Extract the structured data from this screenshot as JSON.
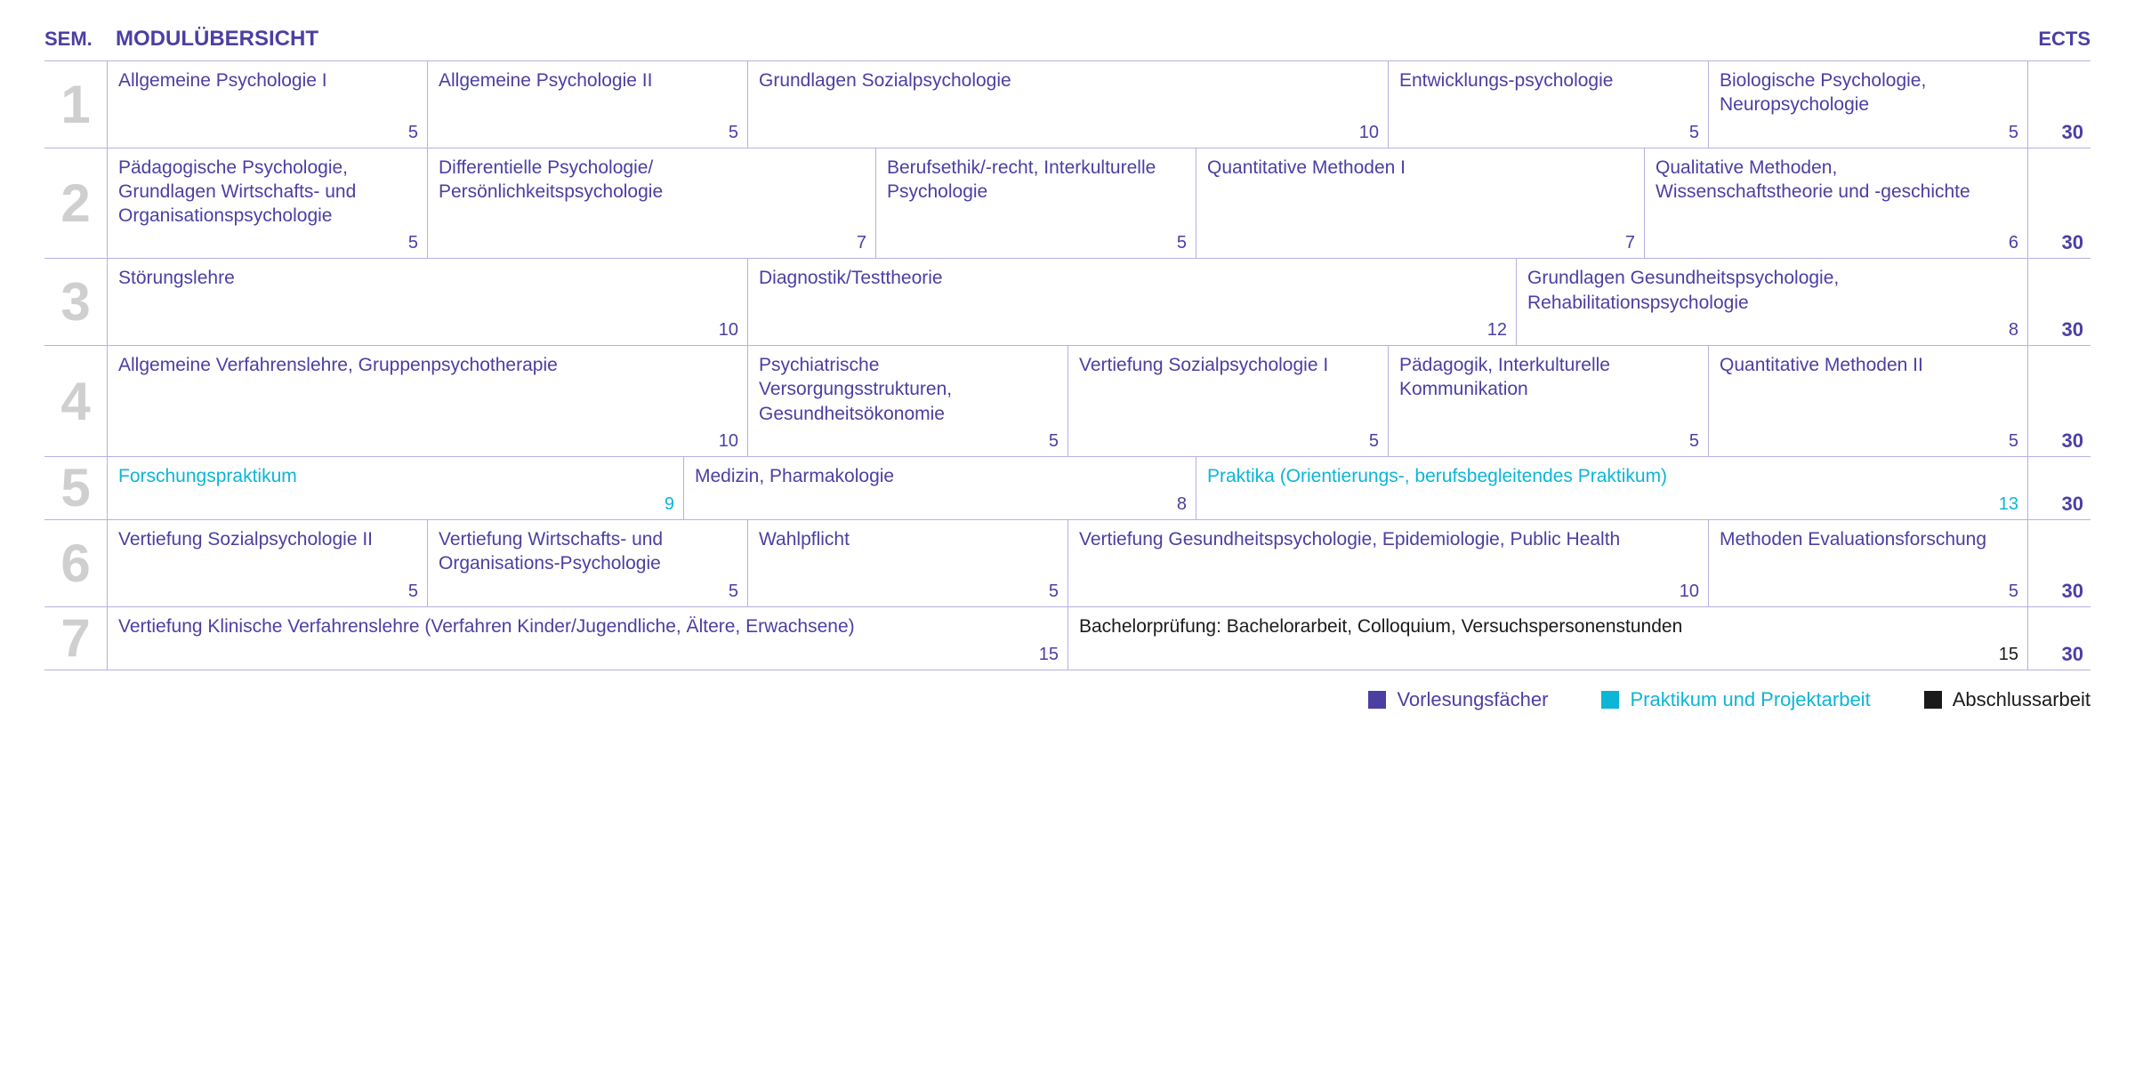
{
  "colors": {
    "purple": "#4b3fa3",
    "cyan": "#0db5d6",
    "black": "#1a1a1a",
    "border": "#b8b0e0",
    "semGray": "#cfcfcf"
  },
  "header": {
    "sem": "SEM.",
    "title": "MODULÜBERSICHT",
    "ects": "ECTS"
  },
  "totalUnits": 30,
  "rows": [
    {
      "sem": "1",
      "ects": "30",
      "modules": [
        {
          "title": "Allgemeine Psychologie I",
          "ects": 5,
          "cat": "lecture"
        },
        {
          "title": "Allgemeine Psychologie II",
          "ects": 5,
          "cat": "lecture"
        },
        {
          "title": "Grundlagen Sozialpsychologie",
          "ects": 10,
          "cat": "lecture"
        },
        {
          "title": "Entwicklungs-psychologie",
          "ects": 5,
          "cat": "lecture"
        },
        {
          "title": "Biologische Psychologie, Neuropsychologie",
          "ects": 5,
          "cat": "lecture"
        }
      ]
    },
    {
      "sem": "2",
      "ects": "30",
      "modules": [
        {
          "title": "Pädagogische Psychologie, Grundlagen Wirtschafts- und Organisationspsychologie",
          "ects": 5,
          "cat": "lecture"
        },
        {
          "title": "Differentielle Psychologie/ Persönlichkeitspsychologie",
          "ects": 7,
          "cat": "lecture"
        },
        {
          "title": "Berufsethik/-recht, Interkulturelle Psychologie",
          "ects": 5,
          "cat": "lecture"
        },
        {
          "title": "Quantitative Methoden I",
          "ects": 7,
          "cat": "lecture"
        },
        {
          "title": "Qualitative Methoden, Wissenschaftstheorie und -geschichte",
          "ects": 6,
          "cat": "lecture"
        }
      ]
    },
    {
      "sem": "3",
      "ects": "30",
      "modules": [
        {
          "title": "Störungslehre",
          "ects": 10,
          "cat": "lecture"
        },
        {
          "title": "Diagnostik/Testtheorie",
          "ects": 12,
          "cat": "lecture"
        },
        {
          "title": "Grundlagen Gesundheitspsychologie, Rehabilitationspsychologie",
          "ects": 8,
          "cat": "lecture"
        }
      ]
    },
    {
      "sem": "4",
      "ects": "30",
      "modules": [
        {
          "title": "Allgemeine Verfahrenslehre, Gruppenpsychotherapie",
          "ects": 10,
          "cat": "lecture"
        },
        {
          "title": "Psychiatrische Versorgungsstrukturen, Gesundheitsökonomie",
          "ects": 5,
          "cat": "lecture"
        },
        {
          "title": "Vertiefung Sozialpsychologie I",
          "ects": 5,
          "cat": "lecture"
        },
        {
          "title": "Pädagogik, Interkulturelle Kommunikation",
          "ects": 5,
          "cat": "lecture"
        },
        {
          "title": "Quantitative Methoden II",
          "ects": 5,
          "cat": "lecture"
        }
      ]
    },
    {
      "sem": "5",
      "ects": "30",
      "modules": [
        {
          "title": "Forschungspraktikum",
          "ects": 9,
          "cat": "practical"
        },
        {
          "title": "Medizin, Pharmakologie",
          "ects": 8,
          "cat": "lecture"
        },
        {
          "title": "Praktika (Orientierungs-, berufsbegleitendes Praktikum)",
          "ects": 13,
          "cat": "practical"
        }
      ]
    },
    {
      "sem": "6",
      "ects": "30",
      "modules": [
        {
          "title": "Vertiefung Sozialpsychologie II",
          "ects": 5,
          "cat": "lecture"
        },
        {
          "title": "Vertiefung Wirtschafts- und Organisations-Psychologie",
          "ects": 5,
          "cat": "lecture"
        },
        {
          "title": "Wahlpflicht",
          "ects": 5,
          "cat": "lecture"
        },
        {
          "title": "Vertiefung Gesundheitspsychologie, Epidemiologie, Public Health",
          "ects": 10,
          "cat": "lecture"
        },
        {
          "title": "Methoden Evaluationsforschung",
          "ects": 5,
          "cat": "lecture"
        }
      ]
    },
    {
      "sem": "7",
      "ects": "30",
      "modules": [
        {
          "title": "Vertiefung Klinische Verfahrenslehre (Verfahren Kinder/Jugendliche, Ältere, Erwachsene)",
          "ects": 15,
          "cat": "lecture"
        },
        {
          "title": "Bachelorprüfung: Bachelorarbeit, Colloquium, Versuchspersonenstunden",
          "ects": 15,
          "cat": "thesis"
        }
      ]
    }
  ],
  "legend": [
    {
      "label": "Vorlesungsfächer",
      "cat": "lecture"
    },
    {
      "label": "Praktikum und Projektarbeit",
      "cat": "practical"
    },
    {
      "label": "Abschlussarbeit",
      "cat": "thesis"
    }
  ]
}
